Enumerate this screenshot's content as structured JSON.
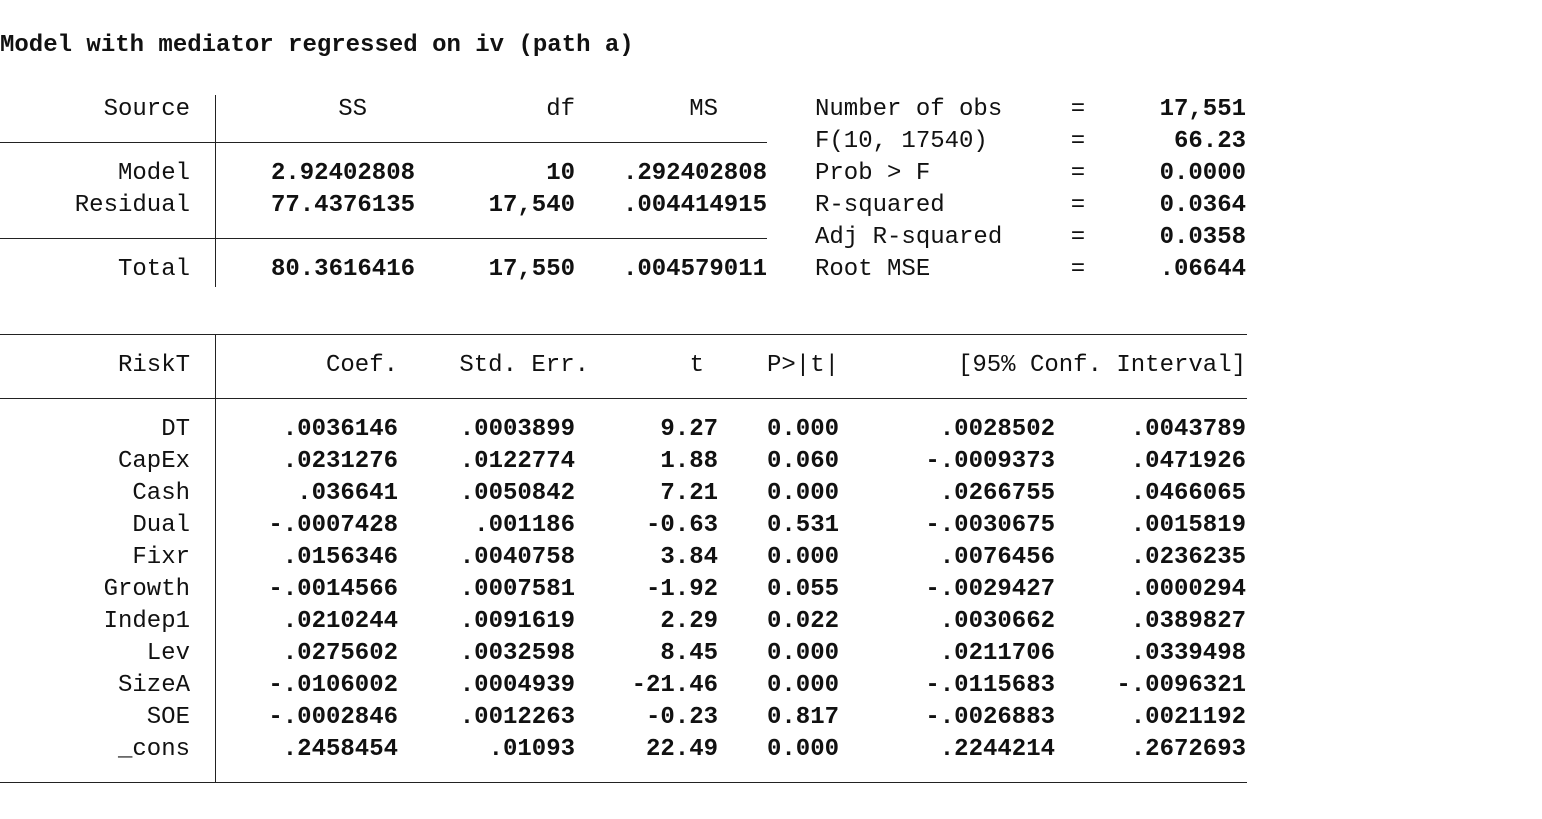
{
  "title": "Model with mediator regressed on iv (path a)",
  "anova": {
    "headers": {
      "source": "Source",
      "ss": "SS",
      "df": "df",
      "ms": "MS"
    },
    "rows": [
      {
        "source": "Model",
        "ss": "2.92402808",
        "df": "10",
        "ms": ".292402808"
      },
      {
        "source": "Residual",
        "ss": "77.4376135",
        "df": "17,540",
        "ms": ".004414915"
      }
    ],
    "total": {
      "source": "Total",
      "ss": "80.3616416",
      "df": "17,550",
      "ms": ".004579011"
    }
  },
  "stats": [
    {
      "label": "Number of obs",
      "eq": "=",
      "value": "17,551"
    },
    {
      "label": "F(10, 17540)",
      "eq": "=",
      "value": "66.23"
    },
    {
      "label": "Prob > F",
      "eq": "=",
      "value": "0.0000"
    },
    {
      "label": "R-squared",
      "eq": "=",
      "value": "0.0364"
    },
    {
      "label": "Adj R-squared",
      "eq": "=",
      "value": "0.0358"
    },
    {
      "label": "Root MSE",
      "eq": "=",
      "value": ".06644"
    }
  ],
  "coef": {
    "headers": {
      "var": "RiskT",
      "coef": "Coef.",
      "se": "Std. Err.",
      "t": "t",
      "p": "P>|t|",
      "ci": "[95% Conf. Interval]"
    },
    "rows": [
      {
        "var": "DT",
        "coef": ".0036146",
        "se": ".0003899",
        "t": "9.27",
        "p": "0.000",
        "lo": ".0028502",
        "hi": ".0043789"
      },
      {
        "var": "CapEx",
        "coef": ".0231276",
        "se": ".0122774",
        "t": "1.88",
        "p": "0.060",
        "lo": "-.0009373",
        "hi": ".0471926"
      },
      {
        "var": "Cash",
        "coef": ".036641",
        "se": ".0050842",
        "t": "7.21",
        "p": "0.000",
        "lo": ".0266755",
        "hi": ".0466065"
      },
      {
        "var": "Dual",
        "coef": "-.0007428",
        "se": ".001186",
        "t": "-0.63",
        "p": "0.531",
        "lo": "-.0030675",
        "hi": ".0015819"
      },
      {
        "var": "Fixr",
        "coef": ".0156346",
        "se": ".0040758",
        "t": "3.84",
        "p": "0.000",
        "lo": ".0076456",
        "hi": ".0236235"
      },
      {
        "var": "Growth",
        "coef": "-.0014566",
        "se": ".0007581",
        "t": "-1.92",
        "p": "0.055",
        "lo": "-.0029427",
        "hi": ".0000294"
      },
      {
        "var": "Indep1",
        "coef": ".0210244",
        "se": ".0091619",
        "t": "2.29",
        "p": "0.022",
        "lo": ".0030662",
        "hi": ".0389827"
      },
      {
        "var": "Lev",
        "coef": ".0275602",
        "se": ".0032598",
        "t": "8.45",
        "p": "0.000",
        "lo": ".0211706",
        "hi": ".0339498"
      },
      {
        "var": "SizeA",
        "coef": "-.0106002",
        "se": ".0004939",
        "t": "-21.46",
        "p": "0.000",
        "lo": "-.0115683",
        "hi": "-.0096321"
      },
      {
        "var": "SOE",
        "coef": "-.0002846",
        "se": ".0012263",
        "t": "-0.23",
        "p": "0.817",
        "lo": "-.0026883",
        "hi": ".0021192"
      },
      {
        "var": "_cons",
        "coef": ".2458454",
        "se": ".01093",
        "t": "22.49",
        "p": "0.000",
        "lo": ".2244214",
        "hi": ".2672693"
      }
    ]
  }
}
